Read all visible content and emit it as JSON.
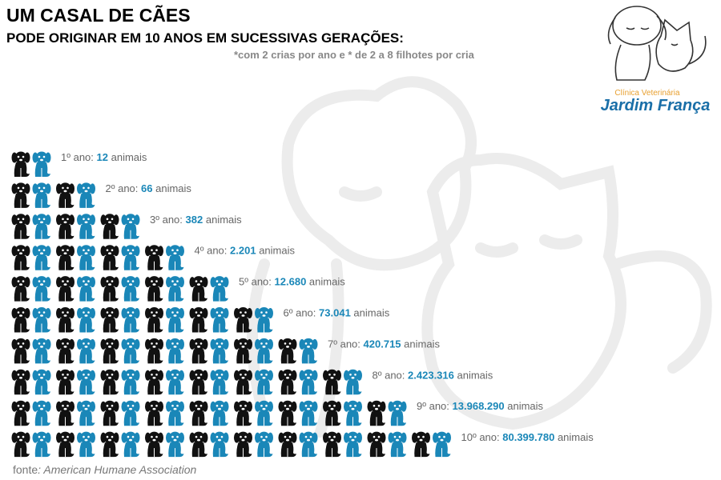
{
  "header": {
    "title": "UM CASAL DE CÃES",
    "subtitle": "PODE ORIGINAR EM 10 ANOS EM SUCESSIVAS GERAÇÕES:",
    "note": "*com 2 crias por ano e * de 2 a 8 filhotes por cria"
  },
  "logo": {
    "line1": "Clínica Veterinária",
    "line2": "Jardim França"
  },
  "rows": [
    {
      "label": "1º ano:",
      "value": "12",
      "unit": "animais"
    },
    {
      "label": "2º ano:",
      "value": "66",
      "unit": "animais"
    },
    {
      "label": "3º ano:",
      "value": "382",
      "unit": "animais"
    },
    {
      "label": "4º ano:",
      "value": "2.201",
      "unit": "animais"
    },
    {
      "label": "5º ano:",
      "value": "12.680",
      "unit": "animais"
    },
    {
      "label": "6º ano:",
      "value": "73.041",
      "unit": "animais"
    },
    {
      "label": "7º ano:",
      "value": "420.715",
      "unit": "animais"
    },
    {
      "label": "8º ano:",
      "value": "2.423.316",
      "unit": "animais"
    },
    {
      "label": "9º ano:",
      "value": "13.968.290",
      "unit": "animais"
    },
    {
      "label": "10º ano:",
      "value": "80.399.780",
      "unit": "animais"
    }
  ],
  "source": {
    "prefix": "fonte",
    "text": ": American Humane Association"
  }
}
